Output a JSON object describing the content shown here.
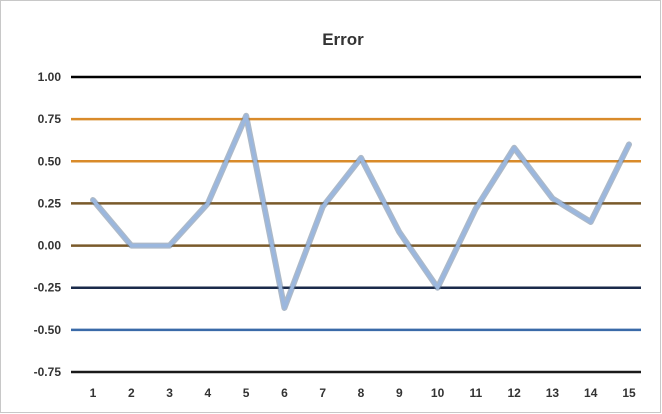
{
  "chart_data": {
    "type": "line",
    "title": "Error",
    "xlabel": "",
    "ylabel": "",
    "categories": [
      "1",
      "2",
      "3",
      "4",
      "5",
      "6",
      "7",
      "8",
      "9",
      "10",
      "11",
      "12",
      "13",
      "14",
      "15"
    ],
    "y_tick_labels": [
      "-0.75",
      "-0.50",
      "-0.25",
      "0.00",
      "0.25",
      "0.50",
      "0.75",
      "1.00"
    ],
    "ylim": [
      -0.75,
      1.0
    ],
    "series": [
      {
        "values": [
          0.27,
          0.0,
          0.0,
          0.25,
          0.77,
          -0.37,
          0.23,
          0.52,
          0.08,
          -0.25,
          0.22,
          0.58,
          0.28,
          0.14,
          0.6
        ],
        "color": "#9bb7de"
      }
    ],
    "gridlines": [
      {
        "value": 1.0,
        "color": "#000000"
      },
      {
        "value": 0.75,
        "color": "#d98b2a"
      },
      {
        "value": 0.5,
        "color": "#d98b2a"
      },
      {
        "value": 0.25,
        "color": "#7a5a2a"
      },
      {
        "value": 0.0,
        "color": "#7a5a2a"
      },
      {
        "value": -0.25,
        "color": "#1a2a4a"
      },
      {
        "value": -0.5,
        "color": "#3a6aa8"
      },
      {
        "value": -0.75,
        "color": "#1a1a1a"
      }
    ]
  }
}
